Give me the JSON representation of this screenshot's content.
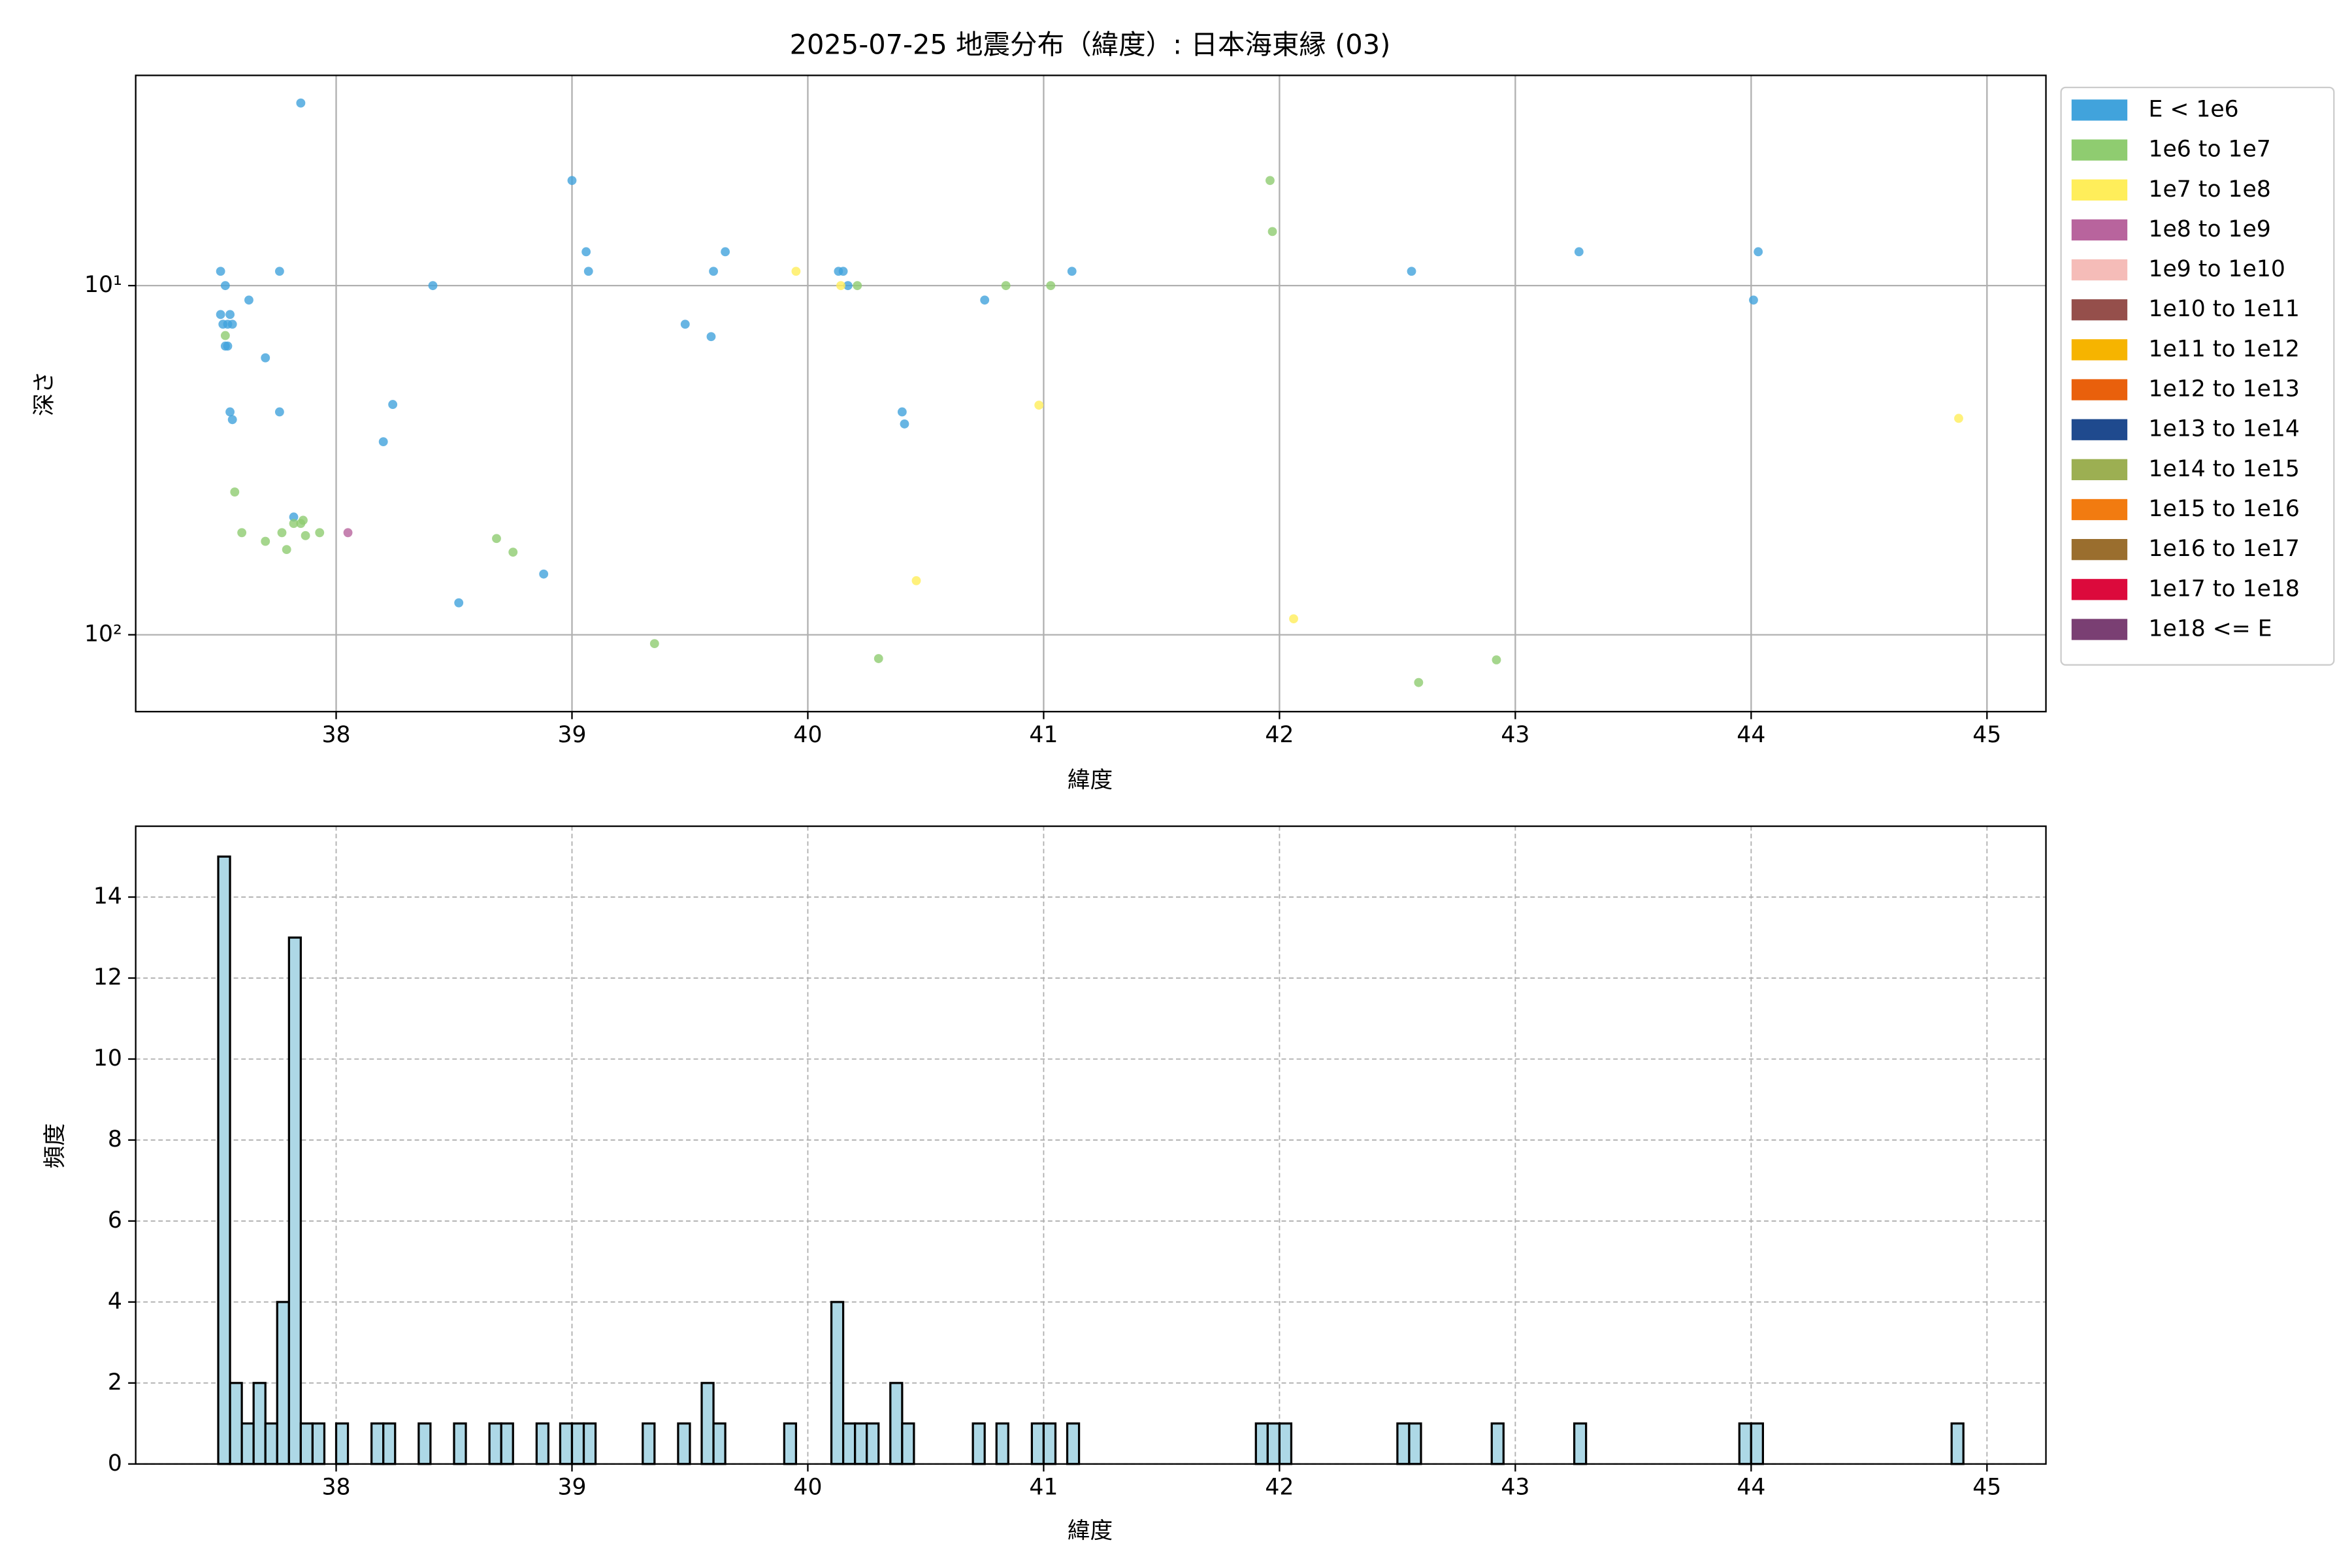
{
  "chart_data": [
    {
      "type": "scatter",
      "title": "2025-07-25 地震分布（緯度）: 日本海東縁 (03)",
      "xlabel": "緯度",
      "ylabel": "深さ",
      "xlim": [
        37.15,
        45.25
      ],
      "xticks": [
        38,
        39,
        40,
        41,
        42,
        43,
        44,
        45
      ],
      "ylim": [
        2.5,
        166
      ],
      "yinvert": true,
      "yscale": "log",
      "yticks": [
        {
          "value": 10,
          "label": "10¹"
        },
        {
          "value": 100,
          "label": "10²"
        }
      ],
      "grid": true,
      "legend": "outside upper right",
      "series": [
        {
          "name": "E < 1e6",
          "color": "#41a3dc",
          "x": [
            37.51,
            37.53,
            37.51,
            37.55,
            37.52,
            37.54,
            37.56,
            37.53,
            37.54,
            37.63,
            37.7,
            37.76,
            37.55,
            37.56,
            37.76,
            37.85,
            37.82,
            38.24,
            38.2,
            38.41,
            38.52,
            38.88,
            39.0,
            39.06,
            39.07,
            39.48,
            39.59,
            39.6,
            39.65,
            40.13,
            40.15,
            40.17,
            40.4,
            40.41,
            40.75,
            41.12,
            42.56,
            43.27,
            44.01,
            44.03
          ],
          "values": [
            9.1,
            10,
            12.1,
            12.1,
            12.9,
            12.9,
            12.9,
            14.9,
            14.9,
            11.0,
            16.1,
            9.1,
            23,
            24.2,
            23,
            3.0,
            46,
            21.9,
            28,
            10,
            81,
            67,
            5.0,
            8.0,
            9.1,
            12.9,
            14.0,
            9.1,
            8.0,
            9.1,
            9.1,
            10,
            23,
            24.9,
            11,
            9.1,
            9.1,
            8.0,
            11,
            8.0
          ]
        },
        {
          "name": "1e6 to 1e7",
          "color": "#8fcc70",
          "x": [
            37.53,
            37.57,
            37.6,
            37.7,
            37.77,
            37.79,
            37.82,
            37.85,
            37.86,
            37.87,
            37.93,
            38.68,
            38.75,
            39.35,
            40.21,
            40.3,
            40.84,
            41.03,
            41.96,
            41.97,
            42.59,
            42.92
          ],
          "values": [
            13.9,
            39,
            51,
            54,
            51,
            57,
            48,
            48,
            47,
            52,
            51,
            53,
            58,
            106,
            10,
            117,
            10,
            10,
            5.0,
            7.0,
            137,
            118
          ]
        },
        {
          "name": "1e7 to 1e8",
          "color": "#ffee5a",
          "x": [
            39.95,
            40.14,
            40.46,
            40.98,
            42.06,
            44.88
          ],
          "values": [
            9.1,
            10,
            70,
            22,
            90,
            24
          ]
        },
        {
          "name": "1e8 to 1e9",
          "color": "#b8649d",
          "x": [
            38.05
          ],
          "values": [
            51
          ]
        },
        {
          "name": "1e9 to 1e10",
          "color": "#f5bcb8",
          "x": [],
          "values": []
        },
        {
          "name": "1e10 to 1e11",
          "color": "#954f4b",
          "x": [],
          "values": []
        },
        {
          "name": "1e11 to 1e12",
          "color": "#f6b400",
          "x": [],
          "values": []
        },
        {
          "name": "1e12 to 1e13",
          "color": "#e9600c",
          "x": [],
          "values": []
        },
        {
          "name": "1e13 to 1e14",
          "color": "#1f4a8e",
          "x": [],
          "values": []
        },
        {
          "name": "1e14 to 1e15",
          "color": "#9caf52",
          "x": [],
          "values": []
        },
        {
          "name": "1e15 to 1e16",
          "color": "#f27b10",
          "x": [],
          "values": []
        },
        {
          "name": "1e16 to 1e17",
          "color": "#9a6e2e",
          "x": [],
          "values": []
        },
        {
          "name": "1e17 to 1e18",
          "color": "#dc0a3c",
          "x": [],
          "values": []
        },
        {
          "name": "1e18 <= E",
          "color": "#7a3f73",
          "x": [],
          "values": []
        }
      ]
    },
    {
      "type": "histogram",
      "xlabel": "緯度",
      "ylabel": "頻度",
      "color": "#add8e6",
      "edgecolor": "#000000",
      "xlim": [
        37.15,
        45.25
      ],
      "xticks": [
        38,
        39,
        40,
        41,
        42,
        43,
        44,
        45
      ],
      "ylim": [
        0,
        15.75
      ],
      "yticks": [
        0,
        2,
        4,
        6,
        8,
        10,
        12,
        14
      ],
      "grid": true,
      "bins": [
        37.5,
        37.55,
        37.6,
        37.65,
        37.7,
        37.75,
        37.8,
        37.85,
        37.9,
        37.95,
        38,
        38.05,
        38.1,
        38.15,
        38.2,
        38.25,
        38.3,
        38.35,
        38.4,
        38.45,
        38.5,
        38.55,
        38.6,
        38.65,
        38.7,
        38.75,
        38.8,
        38.85,
        38.9,
        38.95,
        39,
        39.05,
        39.1,
        39.15,
        39.2,
        39.25,
        39.3,
        39.35,
        39.4,
        39.45,
        39.5,
        39.55,
        39.6,
        39.65,
        39.7,
        39.75,
        39.8,
        39.85,
        39.9,
        39.95,
        40,
        40.05,
        40.1,
        40.15,
        40.2,
        40.25,
        40.3,
        40.35,
        40.4,
        40.45,
        40.5,
        40.55,
        40.6,
        40.65,
        40.7,
        40.75,
        40.8,
        40.85,
        40.9,
        40.95,
        41,
        41.05,
        41.1,
        41.15,
        41.2,
        41.25,
        41.3,
        41.35,
        41.4,
        41.45,
        41.5,
        41.55,
        41.6,
        41.65,
        41.7,
        41.75,
        41.8,
        41.85,
        41.9,
        41.95,
        42,
        42.05,
        42.1,
        42.15,
        42.2,
        42.25,
        42.3,
        42.35,
        42.4,
        42.45,
        42.5,
        42.55,
        42.6,
        42.65,
        42.7,
        42.75,
        42.8,
        42.85,
        42.9,
        42.95,
        43,
        43.05,
        43.1,
        43.15,
        43.2,
        43.25,
        43.3,
        43.35,
        43.4,
        43.45,
        43.5,
        43.55,
        43.6,
        43.65,
        43.7,
        43.75,
        43.8,
        43.85,
        43.9,
        43.95,
        44,
        44.05,
        44.1,
        44.15,
        44.2,
        44.25,
        44.3,
        44.35,
        44.4,
        44.45,
        44.5,
        44.55,
        44.6,
        44.65,
        44.7,
        44.75,
        44.8,
        44.85,
        44.9
      ],
      "values": [
        15,
        2,
        1,
        2,
        1,
        4,
        13,
        1,
        1,
        0,
        1,
        0,
        0,
        1,
        1,
        0,
        0,
        1,
        0,
        0,
        1,
        0,
        0,
        1,
        1,
        0,
        0,
        1,
        0,
        1,
        1,
        1,
        0,
        0,
        0,
        0,
        1,
        0,
        0,
        1,
        0,
        2,
        1,
        0,
        0,
        0,
        0,
        0,
        1,
        0,
        0,
        0,
        4,
        1,
        1,
        1,
        0,
        2,
        1,
        0,
        0,
        0,
        0,
        0,
        1,
        0,
        1,
        0,
        0,
        1,
        1,
        0,
        1,
        0,
        0,
        0,
        0,
        0,
        0,
        0,
        0,
        0,
        0,
        0,
        0,
        0,
        0,
        0,
        1,
        1,
        1,
        0,
        0,
        0,
        0,
        0,
        0,
        0,
        0,
        0,
        1,
        1,
        0,
        0,
        0,
        0,
        0,
        0,
        1,
        0,
        0,
        0,
        0,
        0,
        0,
        1,
        0,
        0,
        0,
        0,
        0,
        0,
        0,
        0,
        0,
        0,
        0,
        0,
        0,
        1,
        1,
        0,
        0,
        0,
        0,
        0,
        0,
        0,
        0,
        0,
        0,
        0,
        0,
        0,
        0,
        0,
        0,
        1
      ]
    }
  ]
}
